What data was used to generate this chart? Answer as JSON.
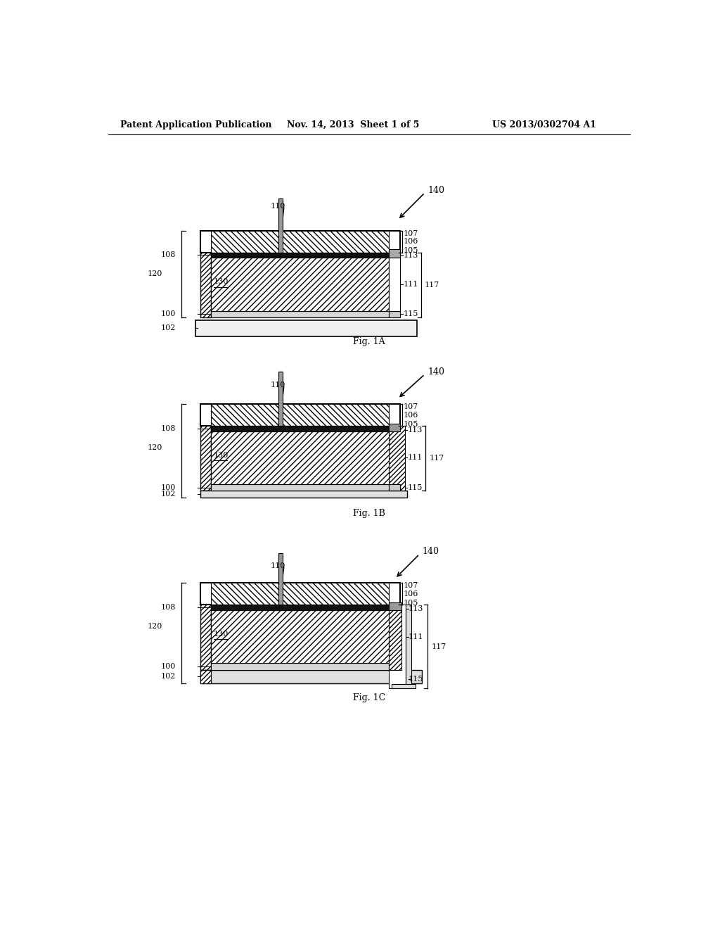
{
  "bg_color": "#ffffff",
  "header_text": "Patent Application Publication",
  "header_date": "Nov. 14, 2013  Sheet 1 of 5",
  "header_patent": "US 2013/0302704 A1",
  "fig_labels": [
    "Fig. 1A",
    "Fig. 1B",
    "Fig. 1C"
  ]
}
